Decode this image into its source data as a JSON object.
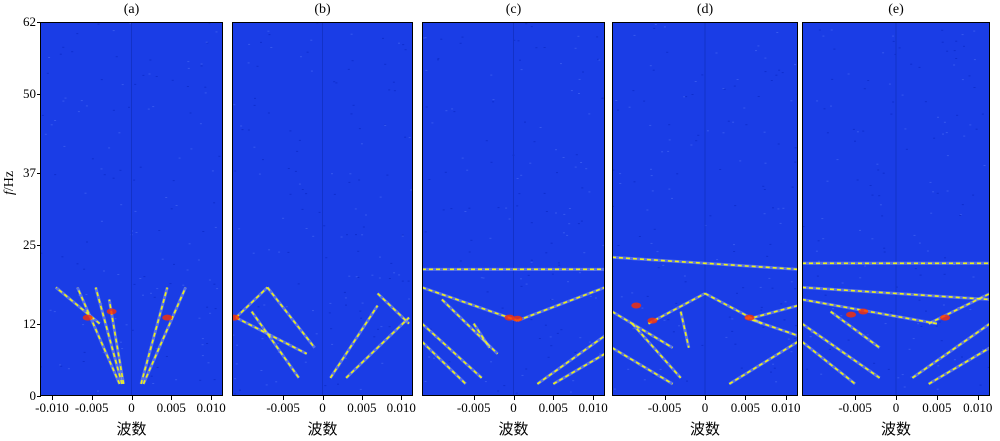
{
  "chart_data": {
    "type": "heatmap",
    "ylabel_italic": "f",
    "ylabel_unit": "/Hz",
    "y_ticks": [
      "0",
      "12",
      "25",
      "37",
      "50",
      "62"
    ],
    "y_tick_values": [
      0,
      12,
      25,
      37,
      50,
      62
    ],
    "ylim": [
      0,
      62
    ],
    "colormap": [
      "#1a3de6",
      "#ffff00",
      "#ff3000"
    ],
    "panels": [
      {
        "title": "(a)",
        "xlabel": "波数",
        "x_ticks": [
          "-0.010",
          "-0.005",
          "0",
          "0.005",
          "0.010"
        ],
        "x_tick_values": [
          -0.01,
          -0.005,
          0,
          0.005,
          0.01
        ],
        "xlim": [
          -0.0115,
          0.0115
        ],
        "streaks": [
          [
            [
              -0.0015,
              2
            ],
            [
              -0.0068,
              18
            ]
          ],
          [
            [
              -0.0012,
              2
            ],
            [
              -0.0045,
              18
            ]
          ],
          [
            [
              -0.001,
              2
            ],
            [
              -0.0028,
              16
            ]
          ],
          [
            [
              0.0015,
              2
            ],
            [
              0.0068,
              18
            ]
          ],
          [
            [
              0.0012,
              2
            ],
            [
              0.0045,
              18
            ]
          ],
          [
            [
              -0.004,
              12
            ],
            [
              -0.0095,
              18
            ]
          ]
        ],
        "hot": [
          [
            -0.0055,
            13
          ],
          [
            0.0045,
            13
          ],
          [
            -0.0025,
            14
          ]
        ]
      },
      {
        "title": "(b)",
        "xlabel": "波数",
        "x_ticks": [
          "-0.005",
          "0",
          "0.005",
          "0.010"
        ],
        "x_tick_values": [
          -0.005,
          0,
          0.005,
          0.01
        ],
        "xlim": [
          -0.0115,
          0.0115
        ],
        "streaks": [
          [
            [
              -0.011,
              13
            ],
            [
              -0.007,
              18
            ]
          ],
          [
            [
              -0.011,
              13
            ],
            [
              -0.002,
              7
            ]
          ],
          [
            [
              -0.007,
              18
            ],
            [
              -0.001,
              8
            ]
          ],
          [
            [
              -0.009,
              14
            ],
            [
              -0.003,
              3
            ]
          ],
          [
            [
              0.001,
              3
            ],
            [
              0.007,
              15
            ]
          ],
          [
            [
              0.003,
              3
            ],
            [
              0.011,
              13
            ]
          ],
          [
            [
              0.007,
              17
            ],
            [
              0.011,
              12
            ]
          ]
        ],
        "hot": [
          [
            -0.0112,
            13
          ]
        ]
      },
      {
        "title": "(c)",
        "xlabel": "波数",
        "x_ticks": [
          "-0.005",
          "0",
          "0.005",
          "0.010"
        ],
        "x_tick_values": [
          -0.005,
          0,
          0.005,
          0.01
        ],
        "xlim": [
          -0.0115,
          0.0115
        ],
        "streaks": [
          [
            [
              -0.0115,
              18
            ],
            [
              0.0005,
              12.5
            ]
          ],
          [
            [
              0.0005,
              12.5
            ],
            [
              0.0115,
              18
            ]
          ],
          [
            [
              -0.0115,
              12
            ],
            [
              -0.004,
              3
            ]
          ],
          [
            [
              -0.0115,
              9
            ],
            [
              -0.006,
              2
            ]
          ],
          [
            [
              -0.009,
              16
            ],
            [
              -0.002,
              7
            ]
          ],
          [
            [
              0.003,
              2
            ],
            [
              0.0115,
              10
            ]
          ],
          [
            [
              0.005,
              2
            ],
            [
              0.0115,
              7
            ]
          ],
          [
            [
              -0.0115,
              21
            ],
            [
              0.0115,
              21
            ]
          ],
          [
            [
              -0.005,
              12
            ],
            [
              -0.003,
              8
            ]
          ]
        ],
        "hot": [
          [
            0.0005,
            12.8
          ],
          [
            -0.0005,
            13
          ]
        ]
      },
      {
        "title": "(d)",
        "xlabel": "波数",
        "x_ticks": [
          "-0.005",
          "0",
          "0.005",
          "0.010"
        ],
        "x_tick_values": [
          -0.005,
          0,
          0.005,
          0.01
        ],
        "xlim": [
          -0.0115,
          0.0115
        ],
        "streaks": [
          [
            [
              -0.0115,
              14
            ],
            [
              -0.004,
              8
            ]
          ],
          [
            [
              -0.0115,
              8
            ],
            [
              -0.004,
              2
            ]
          ],
          [
            [
              -0.009,
              12
            ],
            [
              -0.003,
              3
            ]
          ],
          [
            [
              -0.007,
              12
            ],
            [
              0,
              17
            ]
          ],
          [
            [
              0,
              17
            ],
            [
              0.007,
              12
            ]
          ],
          [
            [
              0.005,
              13
            ],
            [
              0.0115,
              10
            ]
          ],
          [
            [
              0.006,
              13
            ],
            [
              0.0115,
              15
            ]
          ],
          [
            [
              0.003,
              2
            ],
            [
              0.0115,
              9
            ]
          ],
          [
            [
              -0.0115,
              23
            ],
            [
              0.0115,
              21
            ]
          ],
          [
            [
              -0.003,
              14
            ],
            [
              -0.002,
              8
            ]
          ]
        ],
        "hot": [
          [
            -0.0065,
            12.5
          ],
          [
            0.0055,
            13
          ],
          [
            -0.0085,
            15
          ]
        ]
      },
      {
        "title": "(e)",
        "xlabel": "波数",
        "x_ticks": [
          "-0.005",
          "0",
          "0.005",
          "0.010"
        ],
        "x_tick_values": [
          -0.005,
          0,
          0.005,
          0.01
        ],
        "xlim": [
          -0.0115,
          0.0115
        ],
        "streaks": [
          [
            [
              -0.0115,
              16
            ],
            [
              0.005,
              12
            ]
          ],
          [
            [
              -0.0115,
              12
            ],
            [
              -0.002,
              3
            ]
          ],
          [
            [
              -0.0115,
              9
            ],
            [
              -0.005,
              2
            ]
          ],
          [
            [
              -0.008,
              14
            ],
            [
              -0.002,
              8
            ]
          ],
          [
            [
              0.004,
              12
            ],
            [
              0.0115,
              17
            ]
          ],
          [
            [
              0.002,
              3
            ],
            [
              0.0115,
              12
            ]
          ],
          [
            [
              0.004,
              2
            ],
            [
              0.0115,
              8
            ]
          ],
          [
            [
              -0.0115,
              22
            ],
            [
              0.0115,
              22
            ]
          ],
          [
            [
              -0.0115,
              18
            ],
            [
              0.0115,
              16
            ]
          ]
        ],
        "hot": [
          [
            -0.0055,
            13.5
          ],
          [
            0.006,
            13
          ],
          [
            -0.004,
            14
          ]
        ]
      }
    ]
  }
}
